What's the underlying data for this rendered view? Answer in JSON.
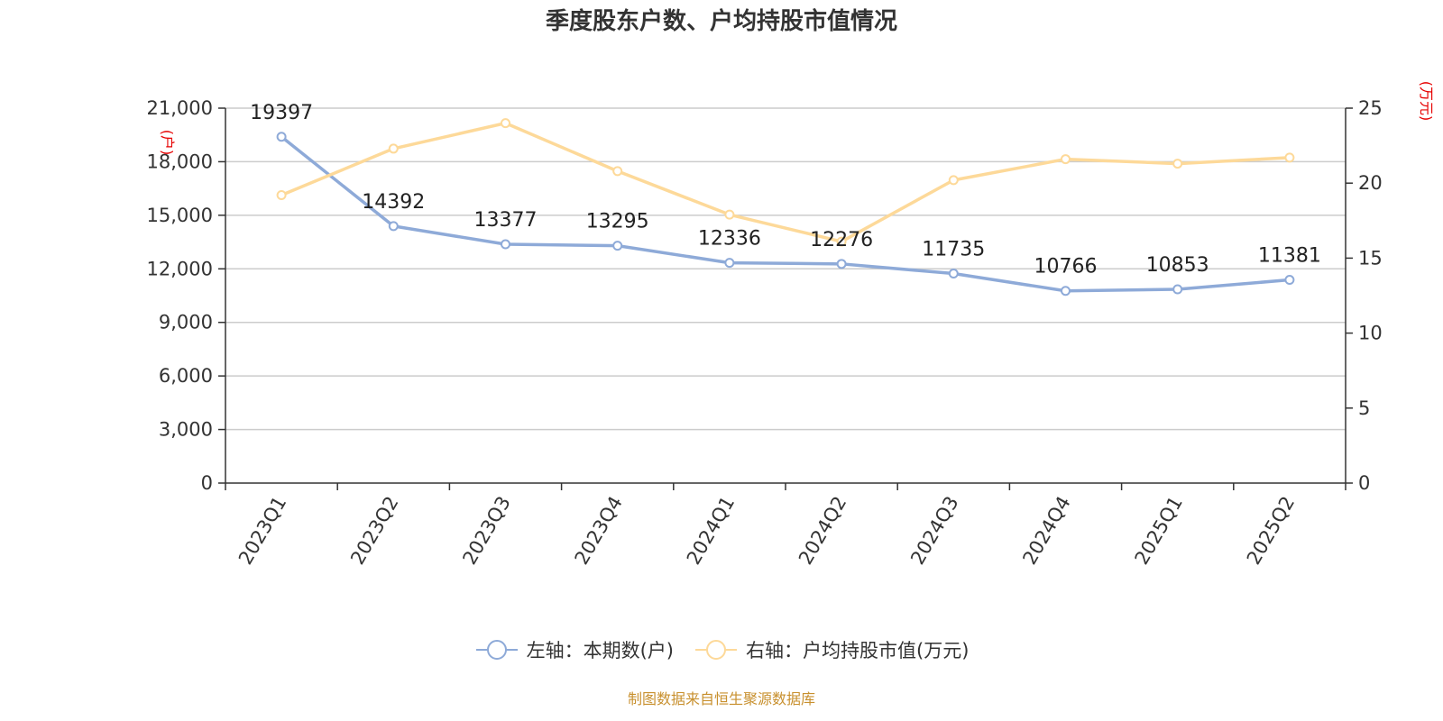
{
  "chart_data": {
    "type": "line",
    "title": "季度股东户数、户均持股市值情况",
    "categories": [
      "2023Q1",
      "2023Q2",
      "2023Q3",
      "2023Q4",
      "2024Q1",
      "2024Q2",
      "2024Q3",
      "2024Q4",
      "2025Q1",
      "2025Q2"
    ],
    "y_left": {
      "unit_label": "(户)",
      "ylim": [
        0,
        21000
      ],
      "ticks": [
        0,
        3000,
        6000,
        9000,
        12000,
        15000,
        18000,
        21000
      ],
      "tick_labels": [
        "0",
        "3,000",
        "6,000",
        "9,000",
        "12,000",
        "15,000",
        "18,000",
        "21,000"
      ]
    },
    "y_right": {
      "unit_label": "(万元)",
      "ylim": [
        0,
        25
      ],
      "ticks": [
        0,
        5,
        10,
        15,
        20,
        25
      ],
      "tick_labels": [
        "0",
        "5",
        "10",
        "15",
        "20",
        "25"
      ]
    },
    "series": [
      {
        "name": "左轴：本期数(户)",
        "axis": "left",
        "color": "#8eaad8",
        "values": [
          19397,
          14392,
          13377,
          13295,
          12336,
          12276,
          11735,
          10766,
          10853,
          11381
        ],
        "data_labels": [
          "19397",
          "14392",
          "13377",
          "13295",
          "12336",
          "12276",
          "11735",
          "10766",
          "10853",
          "11381"
        ]
      },
      {
        "name": "右轴：户均持股市值(万元)",
        "axis": "right",
        "color": "#fdd999",
        "values": [
          19.2,
          22.3,
          24.0,
          20.8,
          17.9,
          16.1,
          20.2,
          21.6,
          21.3,
          21.7
        ]
      }
    ],
    "grid": true,
    "legend_position": "bottom-center"
  },
  "footer": {
    "source": "制图数据来自恒生聚源数据库"
  }
}
